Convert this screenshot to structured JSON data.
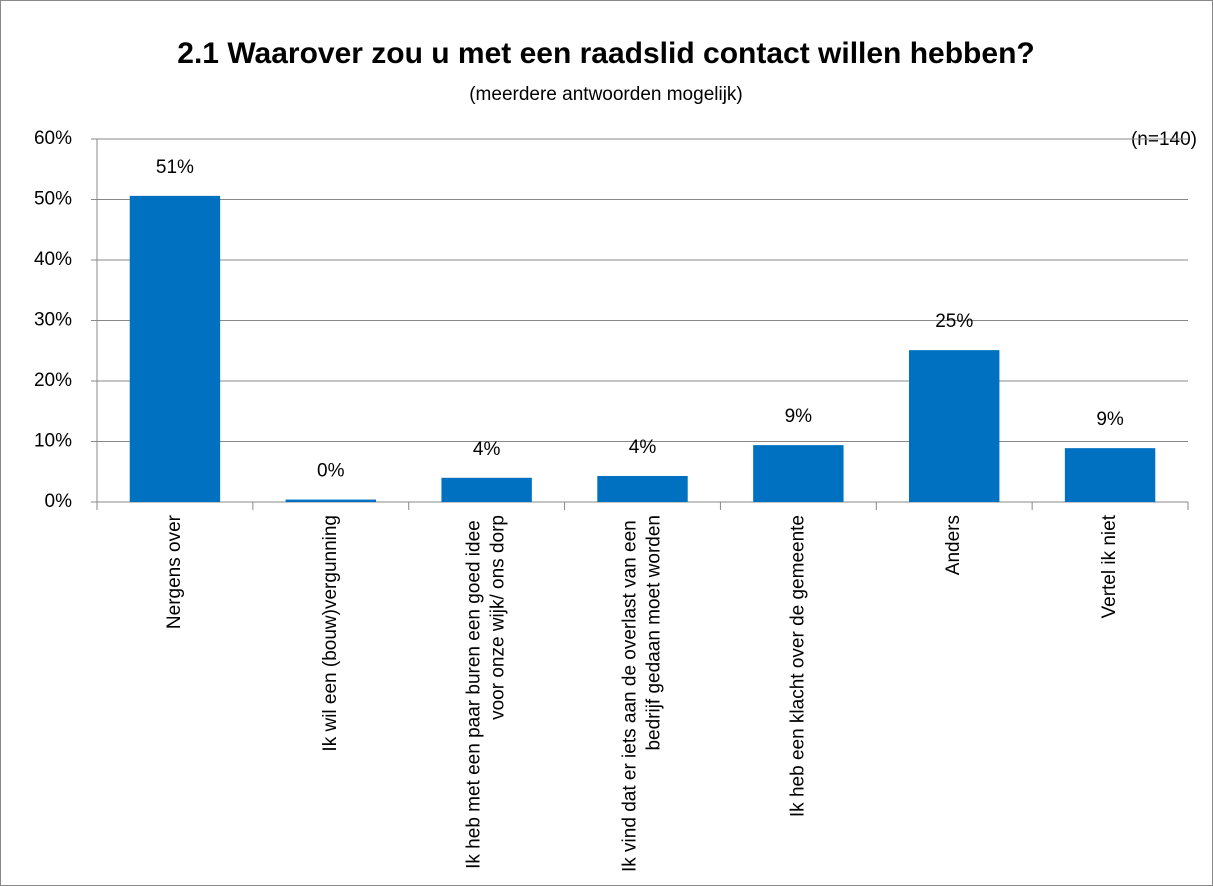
{
  "chart_data": {
    "type": "bar",
    "title": "2.1 Waarover zou u met een raadslid contact willen hebben?",
    "subtitle": "(meerdere antwoorden mogelijk)",
    "annotation": "(n=140)",
    "categories": [
      "Nergens over",
      "Ik wil een (bouw)vergunning",
      "Ik heb met een paar buren een goed idee voor onze wijk/ ons dorp",
      "Ik vind dat er iets aan de overlast van een bedrijf gedaan moet worden",
      "Ik heb een klacht over de gemeente",
      "Anders",
      "Vertel ik niet"
    ],
    "values": [
      50.6,
      0.4,
      4.0,
      4.3,
      9.4,
      25.1,
      8.9
    ],
    "value_labels": [
      "51%",
      "0%",
      "4%",
      "4%",
      "9%",
      "25%",
      "9%"
    ],
    "color": "#0070c0",
    "ylim": [
      0,
      60
    ],
    "yticks": [
      {
        "value": 0,
        "label": "0%"
      },
      {
        "value": 10,
        "label": "10%"
      },
      {
        "value": 20,
        "label": "20%"
      },
      {
        "value": 30,
        "label": "30%"
      },
      {
        "value": 40,
        "label": "40%"
      },
      {
        "value": 50,
        "label": "50%"
      },
      {
        "value": 60,
        "label": "60%"
      }
    ],
    "grid": true
  }
}
